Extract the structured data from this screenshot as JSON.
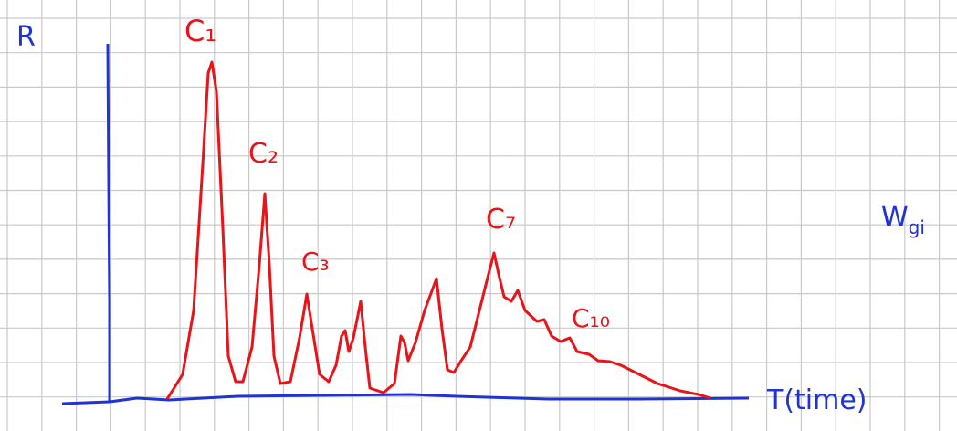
{
  "axes": {
    "y_label": "R",
    "x_label": "T(time)"
  },
  "peaks": [
    {
      "label": "C₁"
    },
    {
      "label": "C₂"
    },
    {
      "label": "C₃"
    },
    {
      "label": "C₇"
    },
    {
      "label": "C₁₀"
    }
  ],
  "side_label": {
    "main": "W",
    "sub": "gi"
  }
}
